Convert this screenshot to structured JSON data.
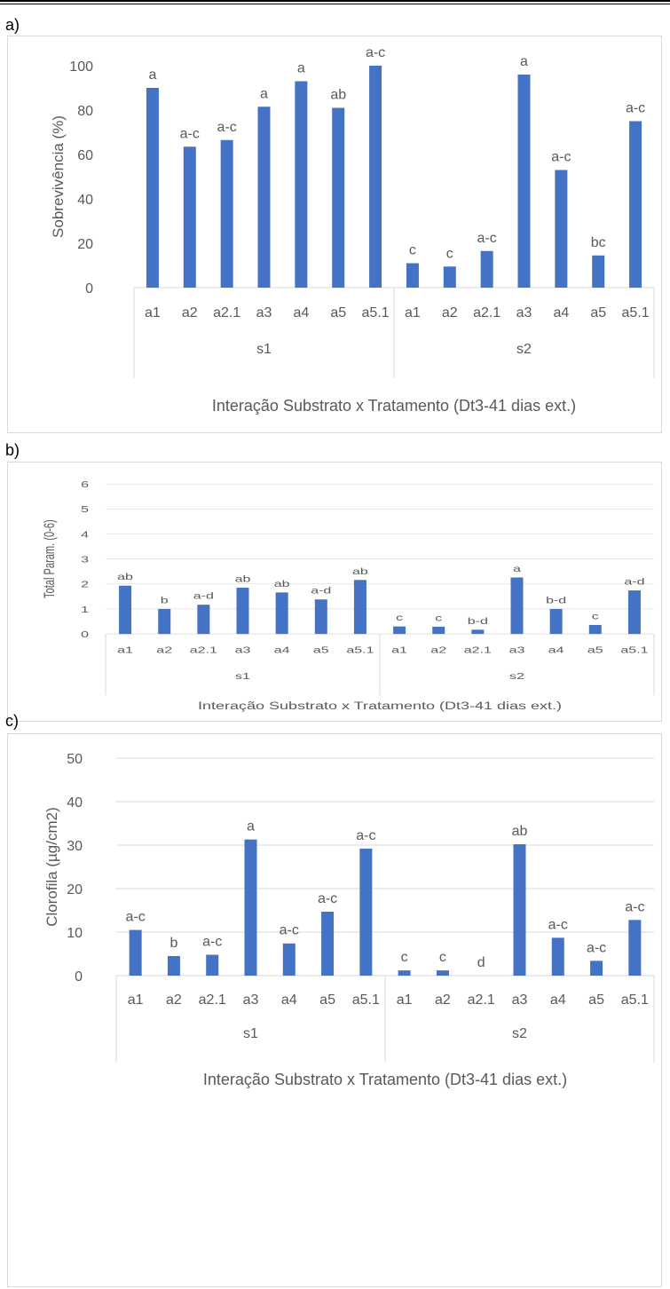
{
  "charts": [
    {
      "panel_label": "a)",
      "chart_data": {
        "type": "bar",
        "ylabel": "Sobrevivência (%)",
        "xlabel": "Interação Substrato x Tratamento (Dt3-41 dias ext.)",
        "ylim": [
          0,
          100
        ],
        "yticks": [
          0,
          20,
          40,
          60,
          80,
          100
        ],
        "grid": false,
        "color": "#4472c4",
        "groups": [
          {
            "name": "s1",
            "categories": [
              "a1",
              "a2",
              "a2.1",
              "a3",
              "a4",
              "a5",
              "a5.1"
            ],
            "values": [
              90,
              63.5,
              66.5,
              81.5,
              93,
              81,
              100
            ],
            "labels": [
              "a",
              "a-c",
              "a-c",
              "a",
              "a",
              "ab",
              "a-c"
            ]
          },
          {
            "name": "s2",
            "categories": [
              "a1",
              "a2",
              "a2.1",
              "a3",
              "a4",
              "a5",
              "a5.1"
            ],
            "values": [
              11,
              9.5,
              16.5,
              96,
              53,
              14.5,
              75
            ],
            "labels": [
              "c",
              "c",
              "a-c",
              "a",
              "a-c",
              "bc",
              "a-c"
            ]
          }
        ]
      }
    },
    {
      "panel_label": "b)",
      "chart_data": {
        "type": "bar",
        "ylabel": "Total Param. (0-6)",
        "xlabel": "Interação Substrato x Tratamento (Dt3-41 dias ext.)",
        "ylim": [
          0,
          6
        ],
        "yticks": [
          0,
          1,
          2,
          3,
          4,
          5,
          6
        ],
        "grid": true,
        "color": "#4472c4",
        "groups": [
          {
            "name": "s1",
            "categories": [
              "a1",
              "a2",
              "a2.1",
              "a3",
              "a4",
              "a5",
              "a5.1"
            ],
            "values": [
              1.93,
              1.0,
              1.17,
              1.85,
              1.66,
              1.38,
              2.16
            ],
            "labels": [
              "ab",
              "b",
              "a-d",
              "ab",
              "ab",
              "a-d",
              "ab"
            ]
          },
          {
            "name": "s2",
            "categories": [
              "a1",
              "a2",
              "a2.1",
              "a3",
              "a4",
              "a5",
              "a5.1"
            ],
            "values": [
              0.3,
              0.29,
              0.17,
              2.26,
              1.0,
              0.36,
              1.74
            ],
            "labels": [
              "c",
              "c",
              "b-d",
              "a",
              "b-d",
              "c",
              "a-d"
            ]
          }
        ]
      }
    },
    {
      "panel_label": "c)",
      "chart_data": {
        "type": "bar",
        "ylabel": "Clorofila (µg/cm2)",
        "xlabel": "Interação Substrato x Tratamento (Dt3-41 dias ext.)",
        "ylim": [
          0,
          50
        ],
        "yticks": [
          0,
          10,
          20,
          30,
          40,
          50
        ],
        "grid": true,
        "color": "#4472c4",
        "groups": [
          {
            "name": "s1",
            "categories": [
              "a1",
              "a2",
              "a2.1",
              "a3",
              "a4",
              "a5",
              "a5.1"
            ],
            "values": [
              10.5,
              4.5,
              4.8,
              31.3,
              7.4,
              14.7,
              29.2
            ],
            "labels": [
              "a-c",
              "b",
              "a-c",
              "a",
              "a-c",
              "a-c",
              "a-c"
            ]
          },
          {
            "name": "s2",
            "categories": [
              "a1",
              "a2",
              "a2.1",
              "a3",
              "a4",
              "a5",
              "a5.1"
            ],
            "values": [
              1.2,
              1.2,
              0,
              30.2,
              8.7,
              3.4,
              12.8
            ],
            "labels": [
              "c",
              "c",
              "d",
              "ab",
              "a-c",
              "a-c",
              "a-c"
            ]
          }
        ]
      }
    }
  ]
}
